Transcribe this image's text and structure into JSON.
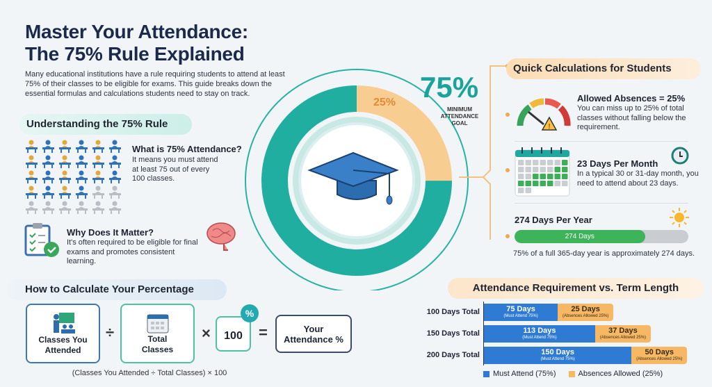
{
  "header": {
    "title_line1": "Master Your Attendance:",
    "title_line2": "The 75% Rule Explained",
    "intro": "Many educational institutions have a rule requiring students to attend at least 75% of their classes to be eligible for exams. This guide breaks down the essential formulas and calculations students need to stay on track."
  },
  "understanding": {
    "heading": "Understanding the 75% Rule",
    "grid": {
      "total": 30,
      "attended": 22,
      "colors": [
        "#e0a93a",
        "#2f72b8",
        "#b9bec5"
      ]
    },
    "what": {
      "title": "What is 75% Attendance?",
      "text": "It means you must attend at least 75 out of every 100 classes."
    },
    "why": {
      "title": "Why Does It Matter?",
      "text": "It's often required to be eligible for final exams and promotes consistent learning."
    }
  },
  "donut": {
    "big_value": "75%",
    "caption_line1": "MINIMUM",
    "caption_line2": "ATTENDANCE",
    "caption_line3": "GOAL",
    "absence_label": "25%",
    "attend_pct": 75,
    "absence_pct": 25,
    "colors": {
      "attend": "#1fb39a",
      "absence": "#f8c98a",
      "label": "#1aa39a"
    }
  },
  "quick": {
    "heading": "Quick Calculations for Students",
    "absences": {
      "title": "Allowed Absences = 25%",
      "text": "You can miss up to 25% of total classes without falling below the requirement."
    },
    "month": {
      "title": "23 Days Per Month",
      "text": "In a typical 30 or 31-day month, you need to attend about 23 days."
    },
    "year": {
      "title": "274 Days Per Year",
      "bar_label": "274 Days",
      "fill_pct": 75,
      "text": "75% of a full 365-day year is approximately 274 days."
    }
  },
  "formula": {
    "heading": "How to Calculate Your Percentage",
    "box1": "Classes You Attended",
    "div": "÷",
    "box2": "Total Classes",
    "times": "×",
    "box3": "100",
    "badge": "%",
    "equals": "=",
    "box4": "Your Attendance %",
    "caption": "(Classes You Attended ÷ Total Classes) × 100"
  },
  "chart_data": {
    "type": "bar",
    "stacked": true,
    "orientation": "horizontal",
    "title": "Attendance Requirement vs. Term Length",
    "categories": [
      "100 Days Total",
      "150 Days Total",
      "200 Days Total"
    ],
    "series": [
      {
        "name": "Must Attend (75%)",
        "values": [
          75,
          113,
          150
        ],
        "labels": [
          "75 Days",
          "113 Days",
          "150 Days"
        ],
        "sublabel": "(Must Attend 75%)",
        "color": "#2f7bd3"
      },
      {
        "name": "Absences Allowed (25%)",
        "values": [
          25,
          37,
          50
        ],
        "labels": [
          "25 Days",
          "37 Days",
          "50 Days"
        ],
        "sublabel": "(Absences Allowed 25%)",
        "color": "#f6b865"
      }
    ],
    "legend": "bottom"
  }
}
